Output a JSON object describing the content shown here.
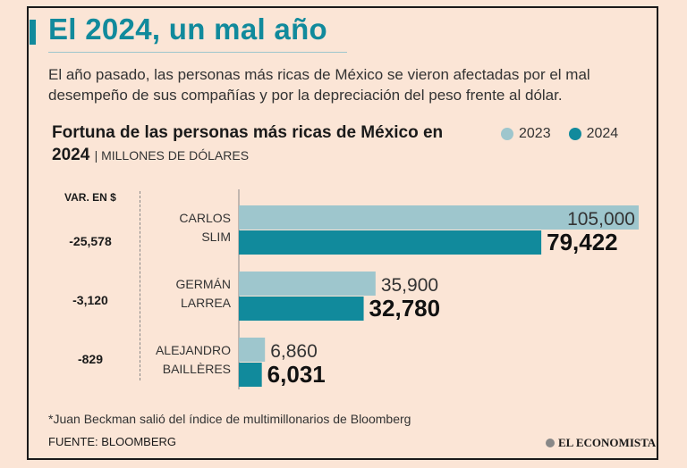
{
  "header": {
    "title": "El 2024, un mal año",
    "subtitle": "El año pasado, las personas más ricas de México se vieron afectadas por el mal desempeño de sus compañías y por la depreciación del peso frente al dólar."
  },
  "chart_data": {
    "type": "bar",
    "title": "Fortuna de las personas más ricas de México en 2024",
    "units": "| MILLONES DE DÓLARES",
    "categories": [
      [
        "CARLOS",
        "SLIM"
      ],
      [
        "GERMÁN",
        "LARREA"
      ],
      [
        "ALEJANDRO",
        "BAILLÈRES"
      ]
    ],
    "series": [
      {
        "name": "2023",
        "values": [
          105000,
          35900,
          6860
        ],
        "labels": [
          "105,000",
          "35,900",
          "6,860"
        ],
        "color": "#9ec6cd"
      },
      {
        "name": "2024",
        "values": [
          79422,
          32780,
          6031
        ],
        "labels": [
          "79,422",
          "32,780",
          "6,031"
        ],
        "color": "#118a9c"
      }
    ],
    "variation_header": "VAR. EN $",
    "variation": [
      "-25,578",
      "-3,120",
      "-829"
    ],
    "legend_position": "top-right",
    "xlim": [
      0,
      105000
    ]
  },
  "footer": {
    "footnote": "*Juan Beckman salió del índice de multimillonarios de Bloomberg",
    "source": "FUENTE: BLOOMBERG",
    "brand": "EL ECONOMISTA"
  }
}
